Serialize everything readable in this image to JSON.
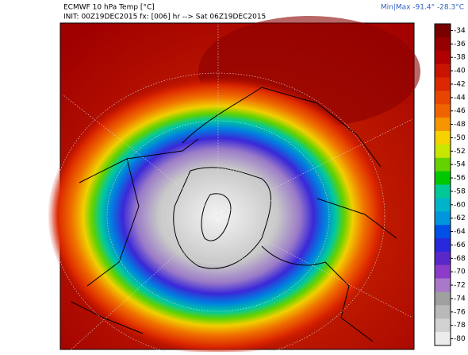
{
  "header": {
    "title": "ECMWF 10 hPa Temp [°C]",
    "init": "INIT: 00Z19DEC2015 fx: [006] hr --> Sat 06Z19DEC2015",
    "minmax": "Min|Max  -91.4°  -28.3°C"
  },
  "colorbar": {
    "ticks": [
      -34,
      -36,
      -38,
      -40,
      -42,
      -44,
      -46,
      -48,
      -50,
      -52,
      -54,
      -56,
      -58,
      -60,
      -62,
      -64,
      -66,
      -68,
      -70,
      -72,
      -74,
      -76,
      -78,
      -80
    ],
    "colors": [
      "#7a0000",
      "#960000",
      "#b00000",
      "#c81400",
      "#dc2800",
      "#e84600",
      "#f06400",
      "#f59600",
      "#f5d200",
      "#c8e600",
      "#64d200",
      "#00c800",
      "#00c896",
      "#00b4c8",
      "#0096dc",
      "#0050e6",
      "#2828dc",
      "#5a28c8",
      "#8c3cc8",
      "#aa78c8",
      "#a0a0a0",
      "#b9b9b9",
      "#d2d2d2",
      "#ececec"
    ]
  }
}
